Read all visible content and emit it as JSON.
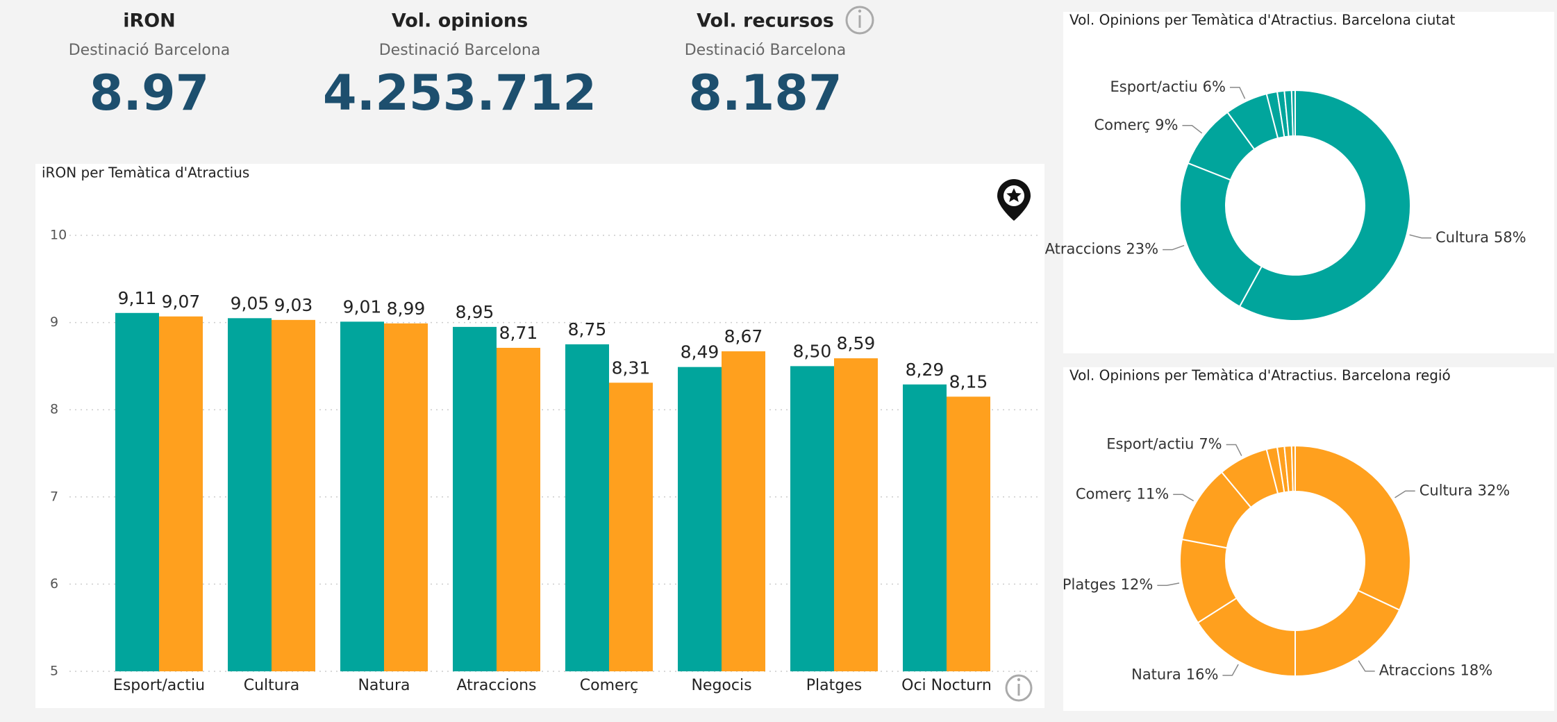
{
  "kpis": [
    {
      "title": "iRON",
      "subtitle": "Destinació Barcelona",
      "value": "8.97"
    },
    {
      "title": "Vol. opinions",
      "subtitle": "Destinació Barcelona",
      "value": "4.253.712"
    },
    {
      "title": "Vol. recursos",
      "subtitle": "Destinació Barcelona",
      "value": "8.187"
    }
  ],
  "chart_data": [
    {
      "type": "bar",
      "title": "iRON per Temàtica d'Atractius",
      "categories": [
        "Esport/actiu",
        "Cultura",
        "Natura",
        "Atraccions",
        "Comerç",
        "Negocis",
        "Platges",
        "Oci Nocturn"
      ],
      "series": [
        {
          "color": "#01A59C",
          "values": [
            9.11,
            9.05,
            9.01,
            8.95,
            8.75,
            8.49,
            8.5,
            8.29
          ],
          "value_labels": [
            "9,11",
            "9,05",
            "9,01",
            "8,95",
            "8,75",
            "8,49",
            "8,50",
            "8,29"
          ]
        },
        {
          "color": "#FFA01E",
          "values": [
            9.07,
            9.03,
            8.99,
            8.71,
            8.31,
            8.67,
            8.59,
            8.15
          ],
          "value_labels": [
            "9,07",
            "9,03",
            "8,99",
            "8,71",
            "8,31",
            "8,67",
            "8,59",
            "8,15"
          ]
        }
      ],
      "ylim": [
        5,
        10
      ],
      "yticks": [
        5,
        6,
        7,
        8,
        9,
        10
      ],
      "grid": true
    },
    {
      "type": "donut",
      "title": "Vol. Opinions per Temàtica d'Atractius. Barcelona ciutat",
      "categories": [
        "Cultura",
        "Atraccions",
        "Comerç",
        "Esport/actiu",
        null,
        null,
        null,
        null
      ],
      "values": [
        58,
        23,
        9,
        6,
        1.5,
        1,
        1,
        0.5
      ],
      "value_labels": [
        "58%",
        "23%",
        "9%",
        "6%",
        null,
        null,
        null,
        null
      ],
      "color": "#01A59C"
    },
    {
      "type": "donut",
      "title": "Vol. Opinions per Temàtica d'Atractius. Barcelona regió",
      "categories": [
        "Cultura",
        "Atraccions",
        "Natura",
        "Platges",
        "Comerç",
        "Esport/actiu",
        null,
        null,
        null,
        null
      ],
      "values": [
        32,
        18,
        16,
        12,
        11,
        7,
        1.5,
        1,
        1,
        0.5
      ],
      "value_labels": [
        "32%",
        "18%",
        "16%",
        "12%",
        "11%",
        "7%",
        null,
        null,
        null,
        null
      ],
      "color": "#FFA01E"
    }
  ]
}
